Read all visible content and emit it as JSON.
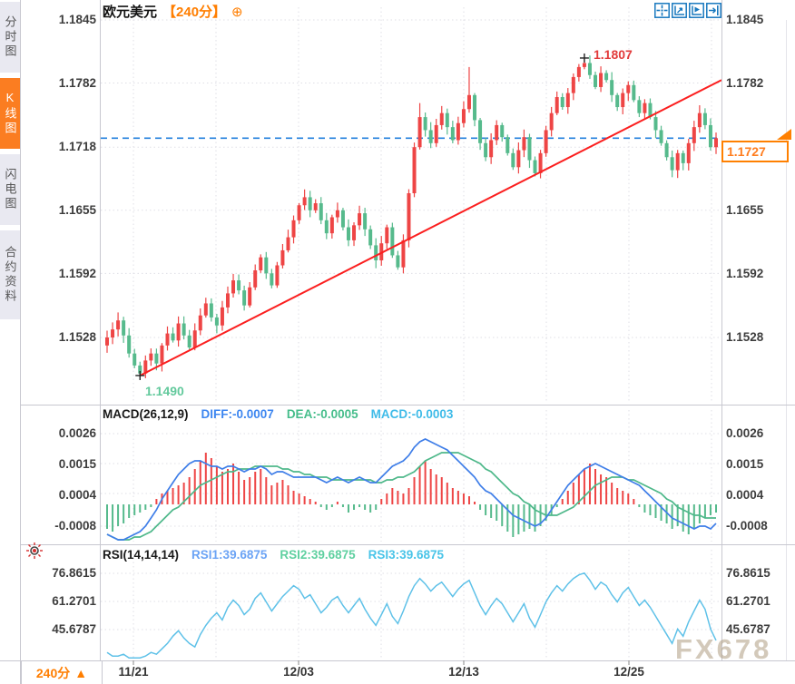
{
  "header": {
    "symbol": "欧元美元",
    "period": "【240分】",
    "add_label": "⊕"
  },
  "sidebar": {
    "items": [
      {
        "label": "分时图",
        "active": false
      },
      {
        "label": "K线图",
        "active": true
      },
      {
        "label": "闪电图",
        "active": false
      },
      {
        "label": "合约资料",
        "active": false
      }
    ]
  },
  "toolbar": {
    "icons": [
      "crosshair-move",
      "axis-scale-reset",
      "axis-auto-scale",
      "jump-to-latest"
    ]
  },
  "main_chart": {
    "tick_labels": [
      "1.1845",
      "1.1782",
      "1.1718",
      "1.1655",
      "1.1592",
      "1.1528"
    ],
    "high_label": "1.1807",
    "low_label": "1.1490",
    "last_price_label": "1.1727"
  },
  "macd_panel": {
    "title": "MACD(26,12,9)",
    "diff_label": "DIFF:-0.0007",
    "dea_label": "DEA:-0.0005",
    "macd_label": "MACD:-0.0003",
    "tick_labels": [
      "0.0026",
      "0.0015",
      "0.0004",
      "-0.0008"
    ]
  },
  "rsi_panel": {
    "title": "RSI(14,14,14)",
    "rsi1_label": "RSI1:39.6875",
    "rsi2_label": "RSI2:39.6875",
    "rsi3_label": "RSI3:39.6875",
    "tick_labels": [
      "76.8615",
      "61.2701",
      "45.6787"
    ]
  },
  "footer": {
    "period": "240分",
    "arrow": "▲",
    "dates": [
      "11/21",
      "12/03",
      "12/13",
      "12/25"
    ]
  },
  "watermark": "FX678",
  "colors": {
    "up": "#ee4545",
    "down": "#56ba8c",
    "trend": "#fb1f1f",
    "dashed": "#2280dd",
    "accent": "#ff7e00",
    "diff": "#3f7ee8",
    "dea": "#4eb88a",
    "macd_text": "#3fbbe8",
    "rsi_line": "#5ec1e8",
    "high_text": "#e23b3b",
    "low_text": "#62c99c",
    "grid": "#dfdfe6",
    "border": "#c8c8d0",
    "icon_blue": "#1878be"
  },
  "chart_data": [
    {
      "type": "candlestick",
      "title": "欧元美元 (EUR/USD)",
      "interval": "240min",
      "y_axis_ticks": [
        1.1845,
        1.1782,
        1.1718,
        1.1655,
        1.1592,
        1.1528
      ],
      "x_labels": [
        "11/21",
        "12/03",
        "12/13",
        "12/25"
      ],
      "high": 1.1807,
      "low": 1.149,
      "last": 1.1727,
      "first_open": 1.152,
      "closes": [
        1.1528,
        1.1536,
        1.1545,
        1.153,
        1.1512,
        1.15,
        1.1492,
        1.1505,
        1.1512,
        1.1502,
        1.152,
        1.1532,
        1.1525,
        1.1542,
        1.153,
        1.1518,
        1.1535,
        1.155,
        1.1562,
        1.1548,
        1.154,
        1.1558,
        1.1572,
        1.1585,
        1.1575,
        1.156,
        1.1578,
        1.1595,
        1.1608,
        1.1592,
        1.158,
        1.16,
        1.1615,
        1.1628,
        1.1645,
        1.166,
        1.1668,
        1.1655,
        1.1662,
        1.1645,
        1.1632,
        1.1648,
        1.1655,
        1.1638,
        1.1625,
        1.164,
        1.1652,
        1.1636,
        1.162,
        1.1605,
        1.1622,
        1.1638,
        1.161,
        1.1598,
        1.1625,
        1.1672,
        1.1718,
        1.1748,
        1.1735,
        1.1722,
        1.174,
        1.1752,
        1.1738,
        1.1725,
        1.1742,
        1.1756,
        1.177,
        1.1745,
        1.1722,
        1.1708,
        1.1725,
        1.174,
        1.1728,
        1.1712,
        1.1698,
        1.1715,
        1.1728,
        1.1705,
        1.1692,
        1.1712,
        1.1735,
        1.1752,
        1.1768,
        1.1758,
        1.1772,
        1.1788,
        1.1798,
        1.1802,
        1.179,
        1.1778,
        1.1792,
        1.1785,
        1.177,
        1.1758,
        1.1772,
        1.178,
        1.1765,
        1.1752,
        1.1762,
        1.1748,
        1.1735,
        1.1722,
        1.1708,
        1.1695,
        1.1712,
        1.1702,
        1.1722,
        1.1738,
        1.1752,
        1.174,
        1.1718,
        1.1727
      ],
      "wick_overrides": {
        "2": {
          "high": 1.1553
        },
        "6": {
          "low": 1.149
        },
        "57": {
          "high": 1.1762
        },
        "66": {
          "high": 1.1798
        },
        "87": {
          "high": 1.1807
        },
        "103": {
          "low": 1.1688
        }
      },
      "trendline": {
        "from_index": 6,
        "from_price": 1.149,
        "to_price": 1.1785
      },
      "dashed_level": 1.1727
    },
    {
      "type": "bar",
      "name": "MACD",
      "params": [
        26,
        12,
        9
      ],
      "axis_ticks": [
        0.0026,
        0.0015,
        0.0004,
        -0.0008
      ],
      "last": {
        "diff": -0.0007,
        "dea": -0.0005,
        "macd": -0.0003
      },
      "hist": [
        -0.0009,
        -0.001,
        -0.0008,
        -0.0007,
        -0.0005,
        -0.0004,
        -0.0003,
        -0.0002,
        -0.0001,
        0.0002,
        0.0004,
        0.0005,
        0.0006,
        0.0007,
        0.0008,
        0.001,
        0.0013,
        0.0016,
        0.0019,
        0.0017,
        0.0014,
        0.0012,
        0.0013,
        0.0015,
        0.0012,
        0.0009,
        0.001,
        0.0012,
        0.0013,
        0.001,
        0.0007,
        0.0008,
        0.0009,
        0.0007,
        0.0005,
        0.0004,
        0.0003,
        0.0002,
        0.0001,
        -0.0001,
        -0.0002,
        -0.0001,
        0.0001,
        -0.0001,
        -0.0003,
        -0.0002,
        -0.0001,
        -0.0002,
        -0.0003,
        -0.0002,
        0.0002,
        0.0004,
        0.0006,
        0.0005,
        0.0004,
        0.0006,
        0.001,
        0.0014,
        0.0016,
        0.0013,
        0.0011,
        0.001,
        0.0008,
        0.0006,
        0.0005,
        0.0004,
        0.0003,
        0.0001,
        -0.0002,
        -0.0004,
        -0.0005,
        -0.0006,
        -0.0008,
        -0.001,
        -0.0012,
        -0.0011,
        -0.001,
        -0.0009,
        -0.001,
        -0.0008,
        -0.0006,
        -0.0004,
        -0.0001,
        0.0002,
        0.0005,
        0.0008,
        0.0011,
        0.0013,
        0.0015,
        0.0013,
        0.0011,
        0.001,
        0.0008,
        0.0006,
        0.0005,
        0.0004,
        0.0002,
        -0.0001,
        -0.0003,
        -0.0004,
        -0.0005,
        -0.0006,
        -0.0007,
        -0.0009,
        -0.0008,
        -0.001,
        -0.0011,
        -0.0009,
        -0.0007,
        -0.0005,
        -0.0004,
        -0.0003
      ],
      "diff": [
        -0.0011,
        -0.0012,
        -0.0013,
        -0.0013,
        -0.0012,
        -0.0011,
        -0.001,
        -0.0008,
        -0.0005,
        -0.0002,
        0.0002,
        0.0005,
        0.0008,
        0.0011,
        0.0013,
        0.0015,
        0.0016,
        0.0016,
        0.0015,
        0.0014,
        0.0014,
        0.0013,
        0.0014,
        0.0014,
        0.0013,
        0.0012,
        0.0013,
        0.0013,
        0.0014,
        0.0013,
        0.0011,
        0.0012,
        0.0012,
        0.0011,
        0.001,
        0.001,
        0.001,
        0.001,
        0.001,
        0.0009,
        0.0008,
        0.0009,
        0.001,
        0.0009,
        0.0008,
        0.0009,
        0.001,
        0.0009,
        0.0008,
        0.0008,
        0.001,
        0.0012,
        0.0014,
        0.0015,
        0.0016,
        0.0018,
        0.0021,
        0.0023,
        0.0024,
        0.0023,
        0.0022,
        0.0021,
        0.002,
        0.0018,
        0.0016,
        0.0014,
        0.0012,
        0.001,
        0.0007,
        0.0005,
        0.0004,
        0.0002,
        0.0,
        -0.0002,
        -0.0004,
        -0.0005,
        -0.0006,
        -0.0007,
        -0.0008,
        -0.0007,
        -0.0005,
        -0.0002,
        0.0001,
        0.0004,
        0.0007,
        0.0009,
        0.0011,
        0.0013,
        0.0014,
        0.0015,
        0.0014,
        0.0013,
        0.0012,
        0.0011,
        0.001,
        0.0009,
        0.0008,
        0.0007,
        0.0005,
        0.0003,
        0.0001,
        -0.0001,
        -0.0003,
        -0.0005,
        -0.0006,
        -0.0007,
        -0.0008,
        -0.0009,
        -0.0008,
        -0.0008,
        -0.0009,
        -0.0007
      ],
      "dea": [
        -0.0011,
        -0.0012,
        -0.0013,
        -0.0013,
        -0.0013,
        -0.0012,
        -0.0012,
        -0.0011,
        -0.001,
        -0.0008,
        -0.0006,
        -0.0004,
        -0.0002,
        -0.0001,
        0.0001,
        0.0003,
        0.0005,
        0.0007,
        0.0008,
        0.0009,
        0.001,
        0.0011,
        0.0012,
        0.0012,
        0.0013,
        0.0013,
        0.0013,
        0.0014,
        0.0014,
        0.0014,
        0.0014,
        0.0014,
        0.0013,
        0.0013,
        0.0012,
        0.0012,
        0.0011,
        0.0011,
        0.001,
        0.001,
        0.001,
        0.0009,
        0.0009,
        0.0009,
        0.0009,
        0.0009,
        0.0009,
        0.0009,
        0.0009,
        0.0008,
        0.0008,
        0.0009,
        0.0009,
        0.001,
        0.001,
        0.0011,
        0.0012,
        0.0014,
        0.0016,
        0.0017,
        0.0018,
        0.0019,
        0.0019,
        0.0019,
        0.0019,
        0.0018,
        0.0017,
        0.0016,
        0.0015,
        0.0013,
        0.0012,
        0.001,
        0.0008,
        0.0006,
        0.0004,
        0.0003,
        0.0001,
        0.0,
        -0.0002,
        -0.0003,
        -0.0004,
        -0.0004,
        -0.0004,
        -0.0003,
        -0.0002,
        -0.0001,
        0.0001,
        0.0003,
        0.0005,
        0.0007,
        0.0008,
        0.0009,
        0.001,
        0.001,
        0.001,
        0.0009,
        0.0009,
        0.0008,
        0.0007,
        0.0006,
        0.0005,
        0.0004,
        0.0002,
        0.0001,
        -0.0001,
        -0.0002,
        -0.0003,
        -0.0004,
        -0.0004,
        -0.0005,
        -0.0005,
        -0.0005
      ]
    },
    {
      "type": "line",
      "name": "RSI",
      "params": [
        14,
        14,
        14
      ],
      "axis_ticks": [
        76.8615,
        61.2701,
        45.6787
      ],
      "last": 39.6875,
      "values": [
        33,
        31,
        31,
        32,
        30,
        30,
        30,
        31,
        33,
        32,
        35,
        38,
        42,
        45,
        41,
        38,
        36,
        43,
        48,
        52,
        55,
        51,
        58,
        62,
        59,
        54,
        57,
        63,
        66,
        61,
        56,
        60,
        64,
        67,
        70,
        68,
        63,
        65,
        60,
        55,
        58,
        62,
        64,
        59,
        55,
        59,
        63,
        57,
        52,
        48,
        54,
        60,
        53,
        49,
        56,
        64,
        70,
        74,
        71,
        67,
        70,
        72,
        68,
        64,
        68,
        71,
        73,
        66,
        59,
        54,
        59,
        63,
        60,
        55,
        50,
        55,
        60,
        52,
        47,
        54,
        61,
        66,
        70,
        67,
        71,
        74,
        76,
        77,
        73,
        68,
        72,
        70,
        65,
        61,
        66,
        69,
        64,
        59,
        62,
        58,
        53,
        48,
        43,
        38,
        46,
        42,
        50,
        56,
        62,
        57,
        46,
        39.6875
      ]
    }
  ]
}
